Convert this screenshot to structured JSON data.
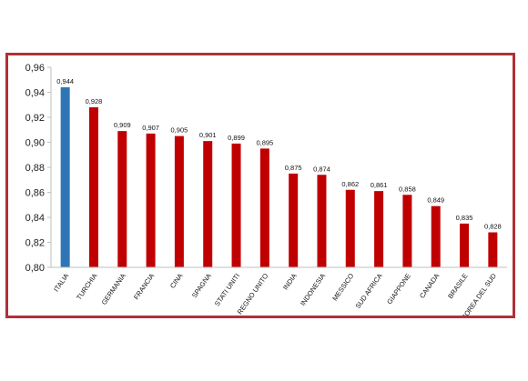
{
  "chart_data": {
    "type": "bar",
    "title": "",
    "xlabel": "",
    "ylabel": "",
    "ylim": [
      0.8,
      0.96
    ],
    "yticks": [
      0.8,
      0.82,
      0.84,
      0.86,
      0.88,
      0.9,
      0.92,
      0.94,
      0.96
    ],
    "ytick_labels": [
      "0,80",
      "0,82",
      "0,84",
      "0,86",
      "0,88",
      "0,90",
      "0,92",
      "0,94",
      "0,96"
    ],
    "grid": false,
    "legend": "none",
    "categories": [
      "ITALIA",
      "TURCHIA",
      "GERMANIA",
      "FRANCIA",
      "CINA",
      "SPAGNA",
      "STATI UNITI",
      "REGNO UNITO",
      "INDIA",
      "INDONESIA",
      "MESSICO",
      "SUD AFRICA",
      "GIAPPONE",
      "CANADA",
      "BRASILE",
      "COREA DEL SUD"
    ],
    "values": [
      0.944,
      0.928,
      0.909,
      0.907,
      0.905,
      0.901,
      0.899,
      0.895,
      0.875,
      0.874,
      0.862,
      0.861,
      0.858,
      0.849,
      0.835,
      0.828
    ],
    "value_labels": [
      "0,944",
      "0,928",
      "0,909",
      "0,907",
      "0,905",
      "0,901",
      "0,899",
      "0,895",
      "0,875",
      "0,874",
      "0,862",
      "0,861",
      "0,858",
      "0,849",
      "0,835",
      "0,828"
    ],
    "colors": {
      "highlight": "#2e75b6",
      "bars": "#c00000",
      "frame": "#b03036",
      "axis": "#bfbfbf"
    },
    "highlight_index": 0
  }
}
